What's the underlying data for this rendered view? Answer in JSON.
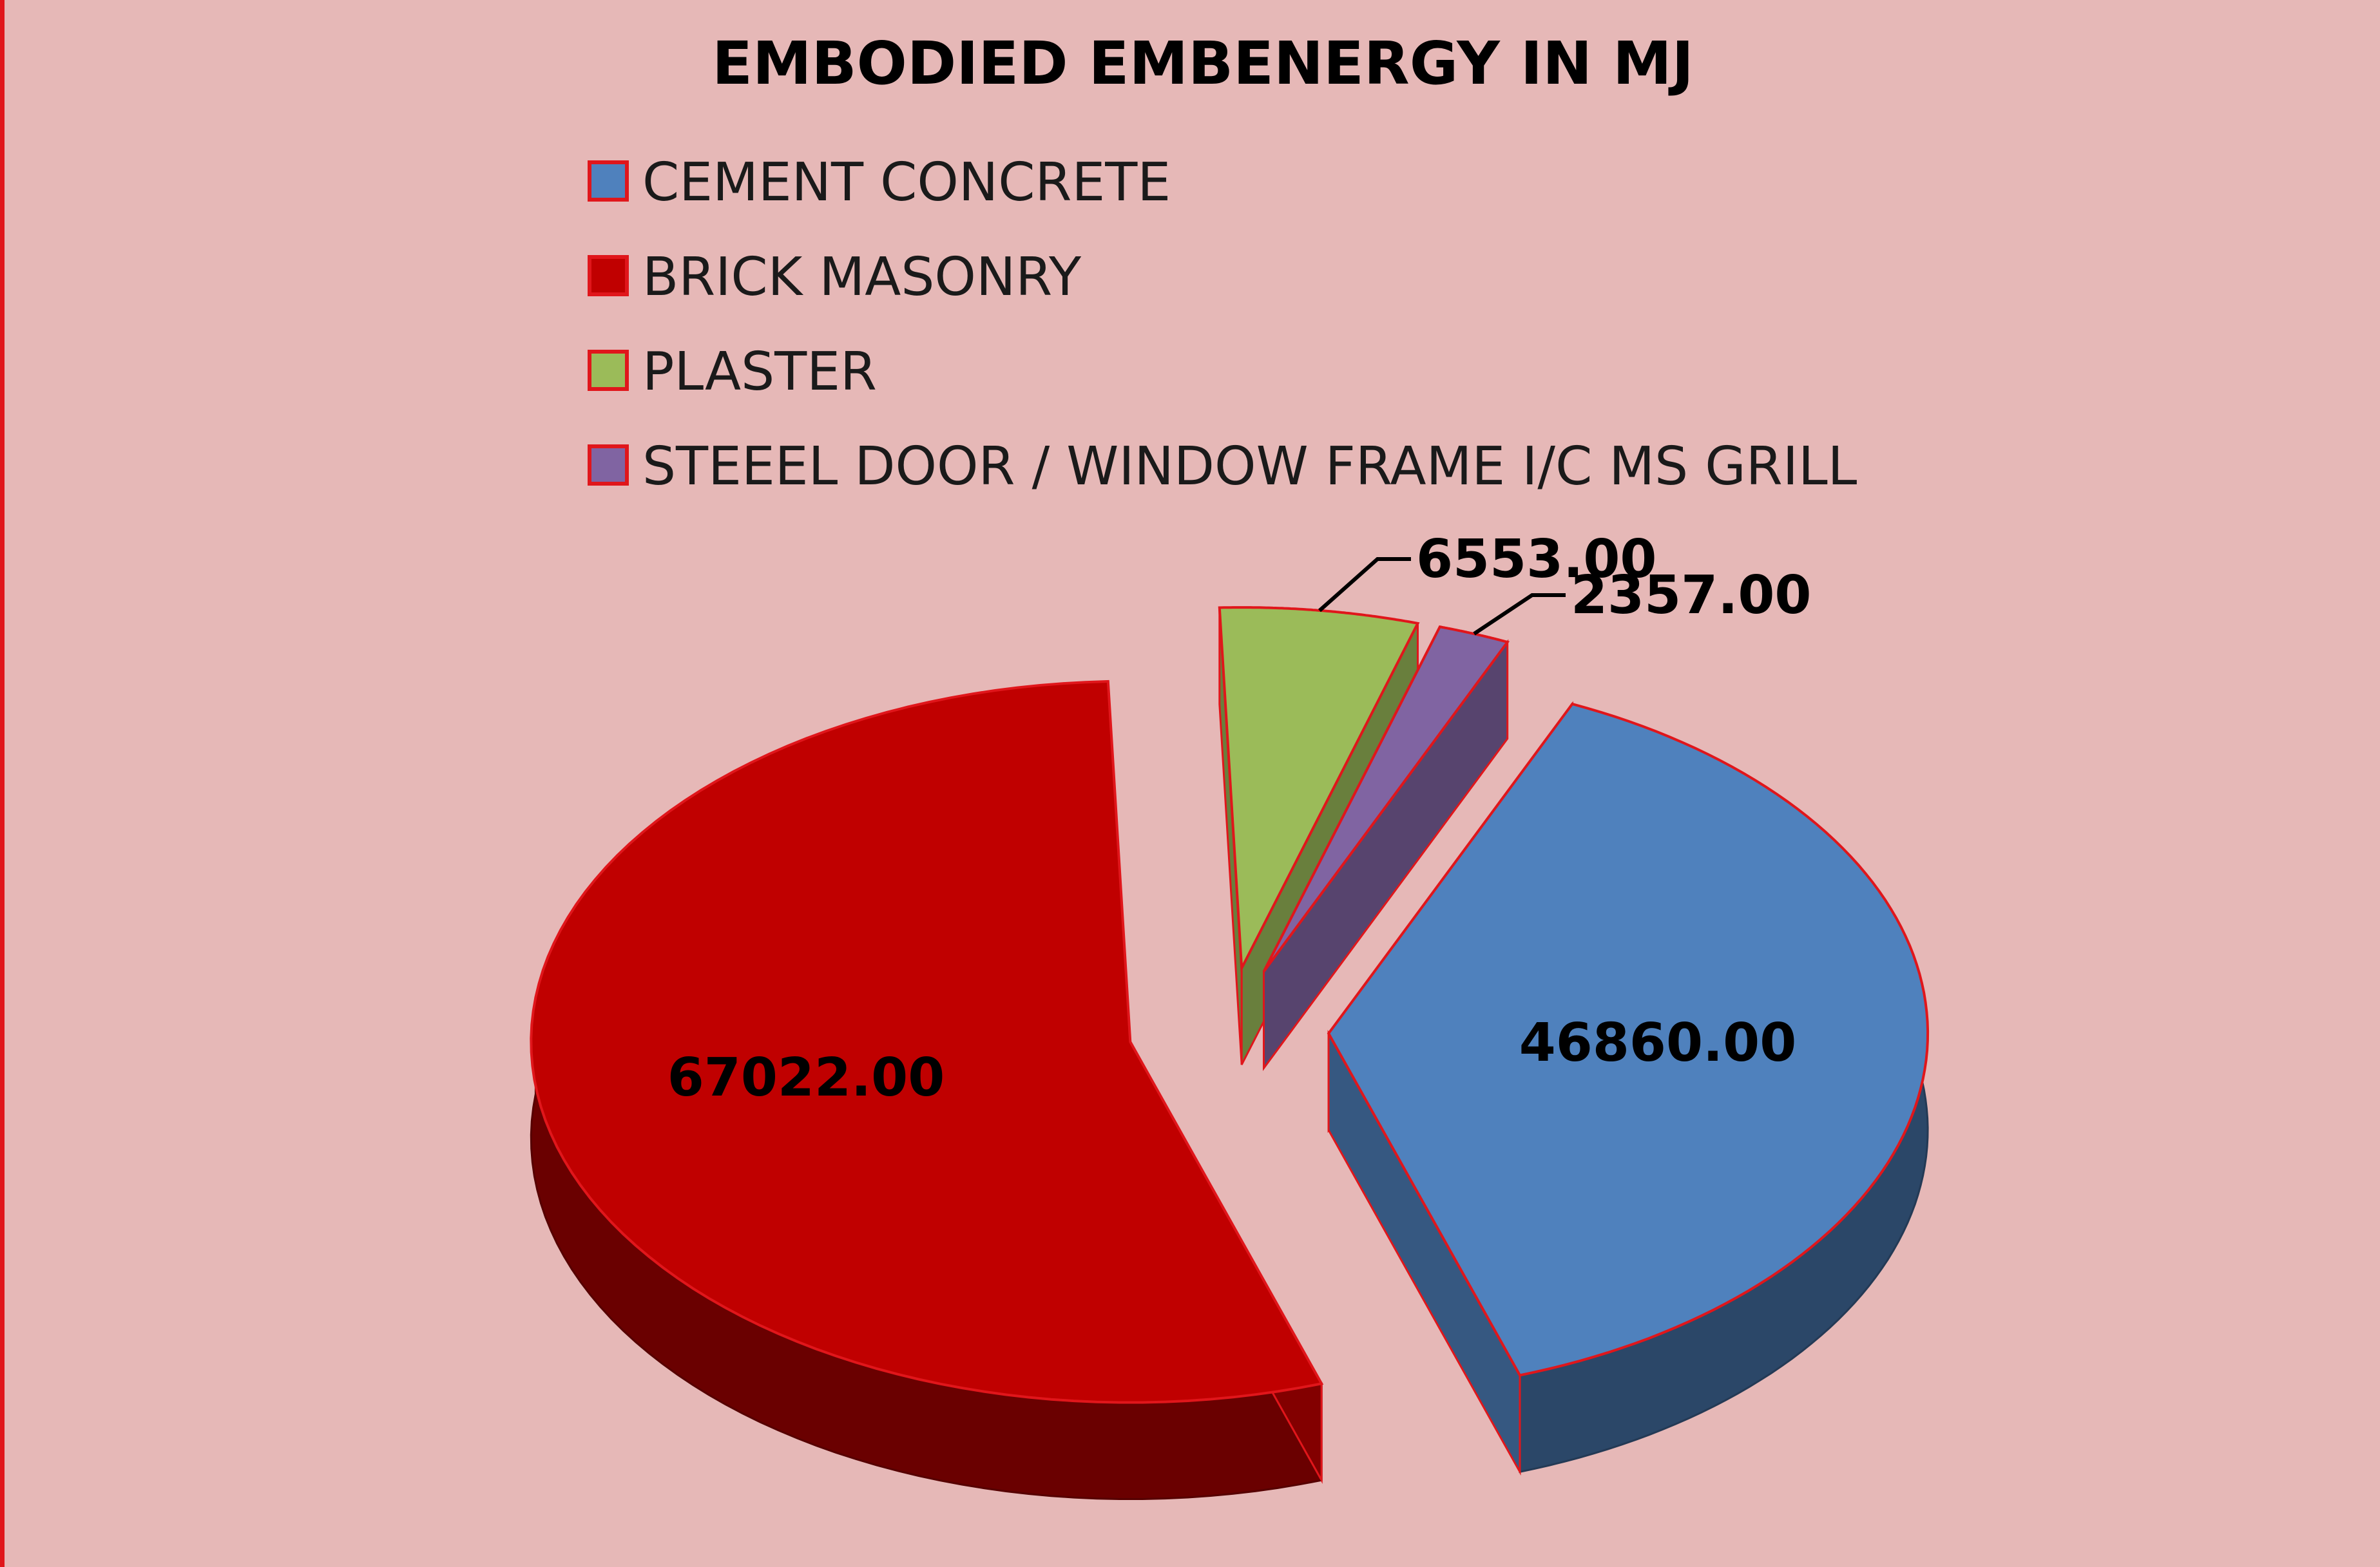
{
  "chart_data": {
    "type": "pie",
    "style": "3d-exploded",
    "title": "EMBODIED EMBENERGY IN MJ",
    "legend_position": "top",
    "categories": [
      "CEMENT CONCRETE",
      "BRICK MASONRY",
      "PLASTER",
      "STEEEL DOOR / WINDOW FRAME I/C MS GRILL"
    ],
    "values": [
      46860.0,
      67022.0,
      6553.0,
      2357.0
    ],
    "data_labels": [
      "46860.00",
      "67022.00",
      "6553.00",
      "2357.00"
    ],
    "colors": [
      "#4f81bd",
      "#c00000",
      "#9bbb59",
      "#8064a2"
    ],
    "border_color": "#e0161b",
    "background_color": "#e6b8b7"
  }
}
